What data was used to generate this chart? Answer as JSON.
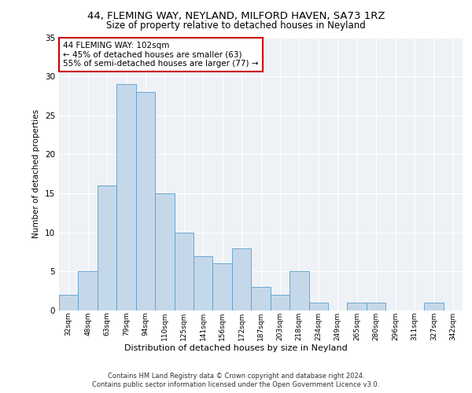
{
  "title1": "44, FLEMING WAY, NEYLAND, MILFORD HAVEN, SA73 1RZ",
  "title2": "Size of property relative to detached houses in Neyland",
  "xlabel": "Distribution of detached houses by size in Neyland",
  "ylabel": "Number of detached properties",
  "categories": [
    "32sqm",
    "48sqm",
    "63sqm",
    "79sqm",
    "94sqm",
    "110sqm",
    "125sqm",
    "141sqm",
    "156sqm",
    "172sqm",
    "187sqm",
    "203sqm",
    "218sqm",
    "234sqm",
    "249sqm",
    "265sqm",
    "280sqm",
    "296sqm",
    "311sqm",
    "327sqm",
    "342sqm"
  ],
  "values": [
    2,
    5,
    16,
    29,
    28,
    15,
    10,
    7,
    6,
    8,
    3,
    2,
    5,
    1,
    0,
    1,
    1,
    0,
    0,
    1,
    0
  ],
  "bar_color": "#c5d8ea",
  "bar_edge_color": "#5a9ec9",
  "highlight_index": 4,
  "annotation_box_text": "44 FLEMING WAY: 102sqm\n← 45% of detached houses are smaller (63)\n55% of semi-detached houses are larger (77) →",
  "annotation_box_color": "#ffffff",
  "annotation_box_edge": "#cc0000",
  "background_color": "#eef2f7",
  "footer_line1": "Contains HM Land Registry data © Crown copyright and database right 2024.",
  "footer_line2": "Contains public sector information licensed under the Open Government Licence v3.0.",
  "ylim": [
    0,
    35
  ],
  "yticks": [
    0,
    5,
    10,
    15,
    20,
    25,
    30,
    35
  ]
}
